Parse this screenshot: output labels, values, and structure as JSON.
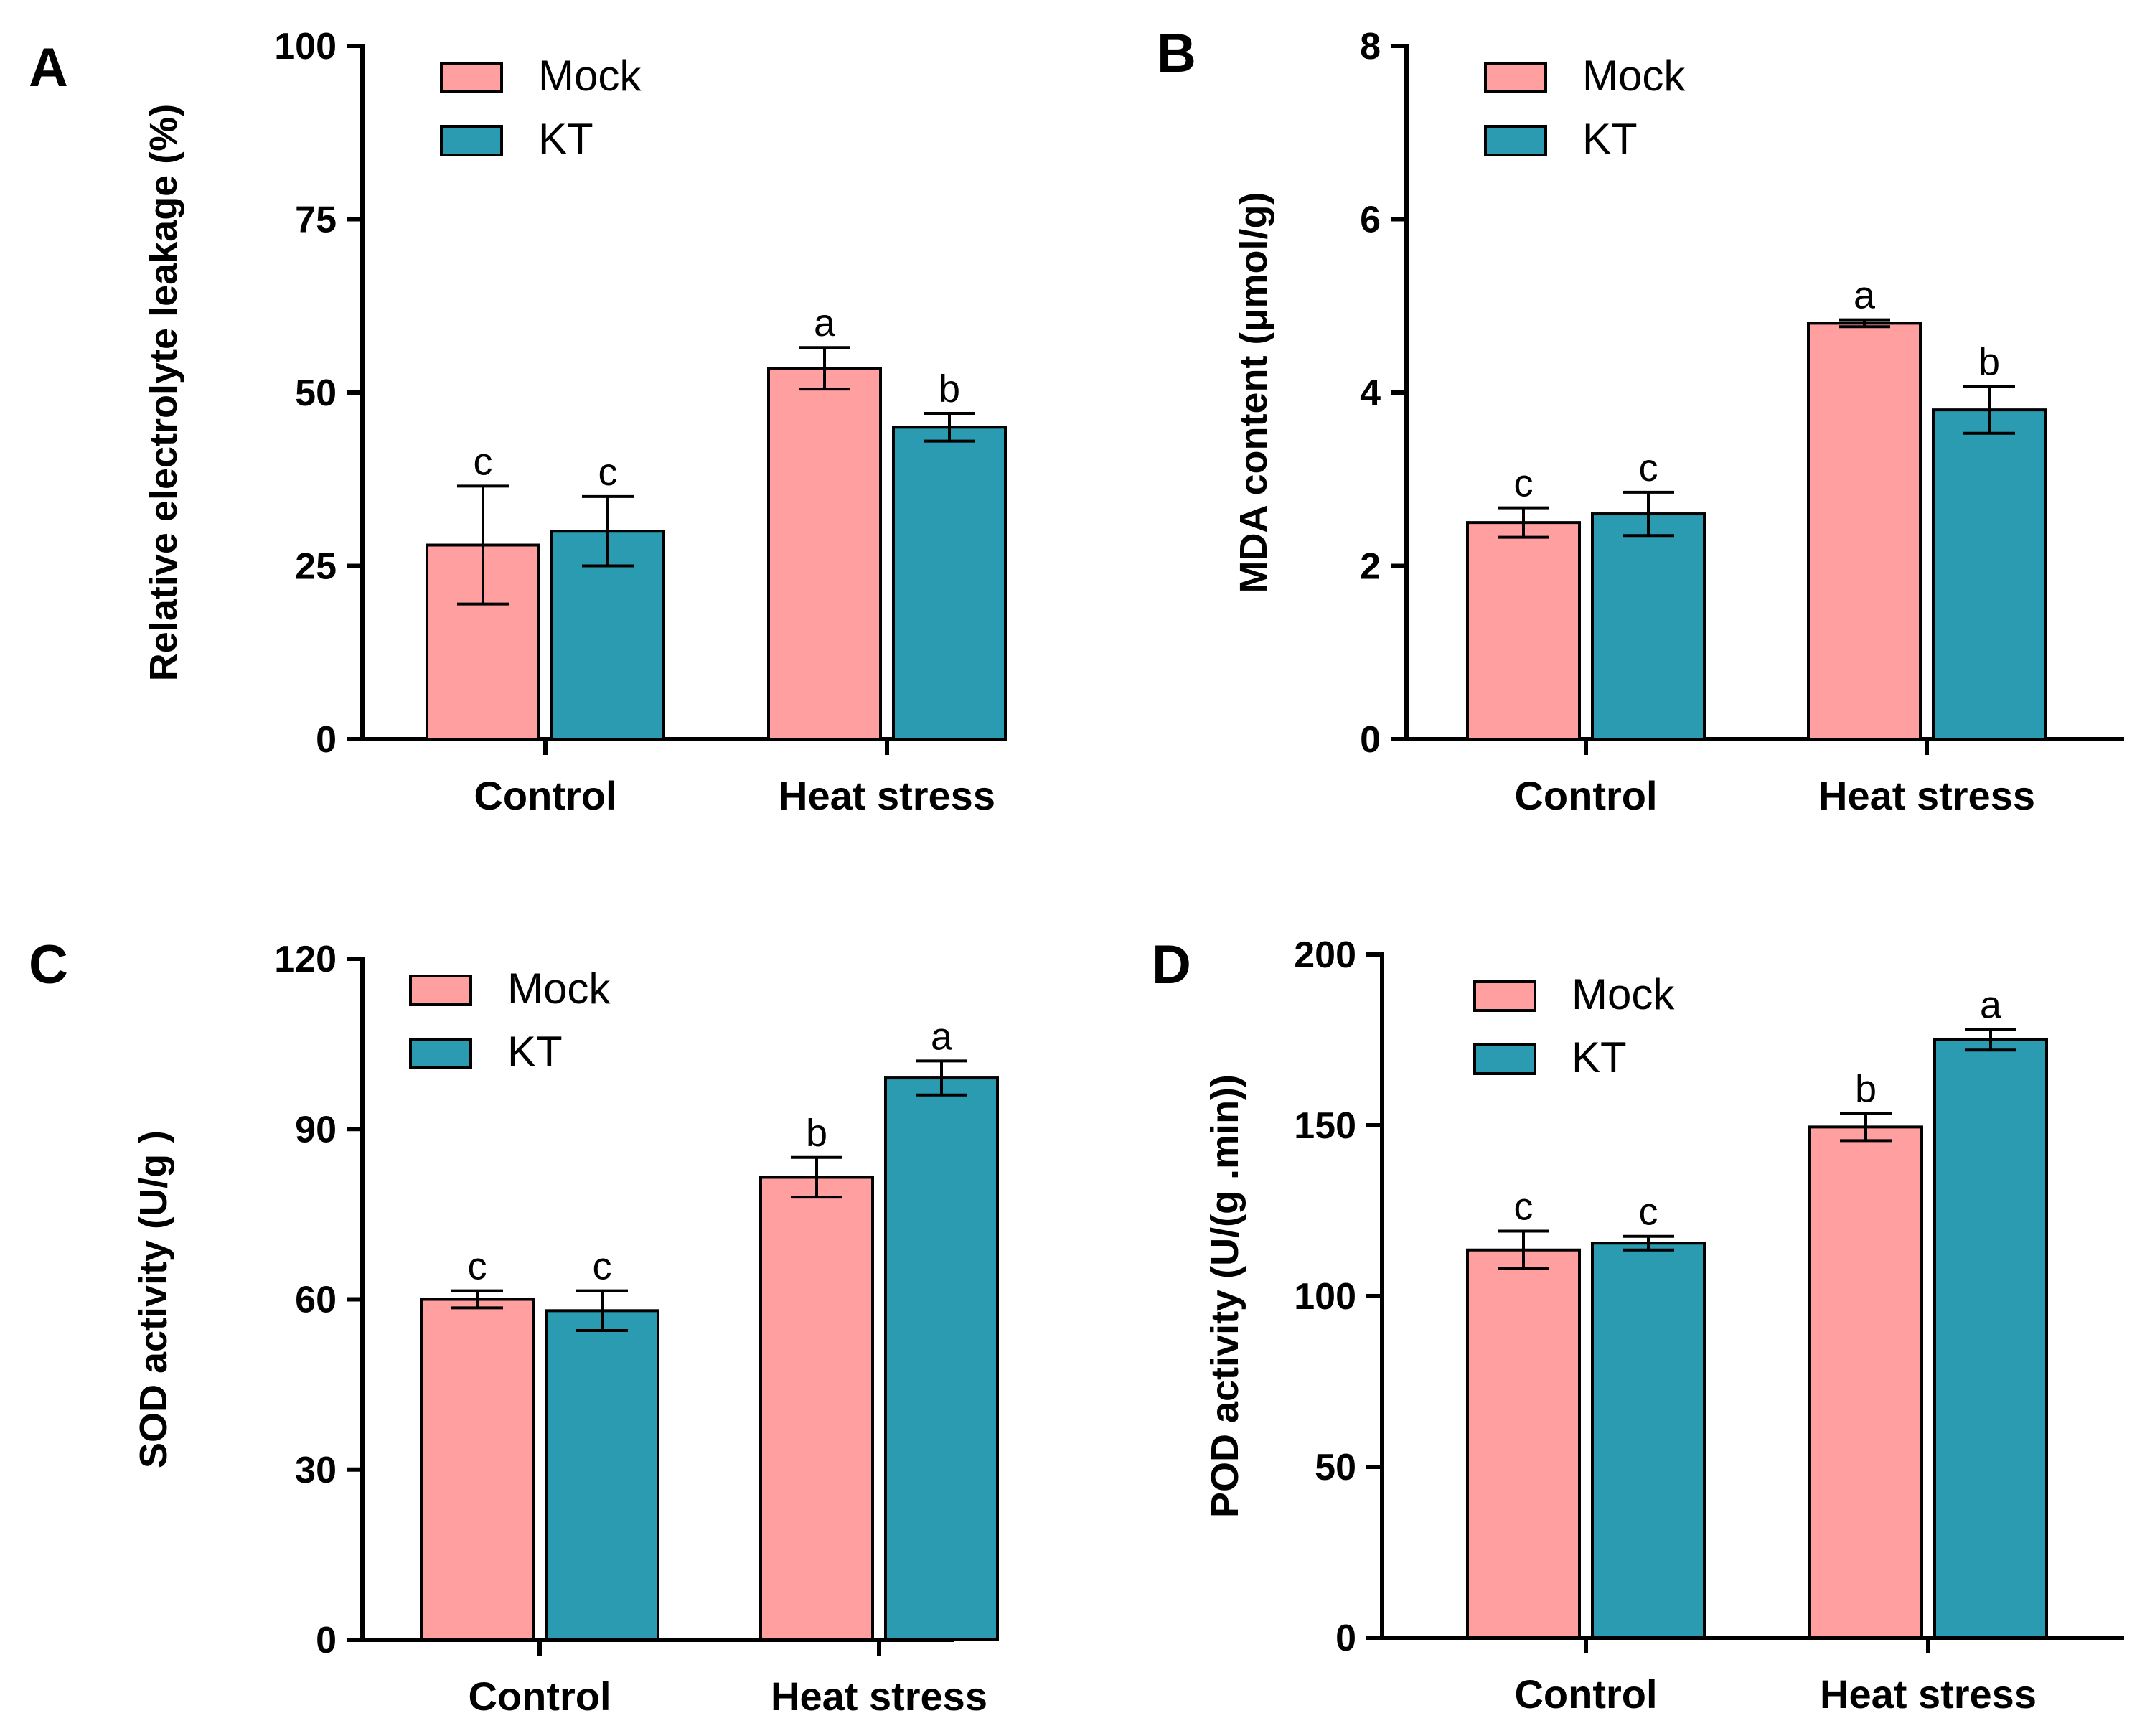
{
  "colors": {
    "mock": "#FF9F9F",
    "kt": "#2A9BB0",
    "axis": "#000000"
  },
  "chart_data": [
    {
      "panel": "A",
      "type": "bar",
      "categories": [
        "Control",
        "Heat stress"
      ],
      "ylabel": "Relative electrolyte leakage (%)",
      "ylim": [
        0,
        100
      ],
      "yticks": [
        "0",
        "25",
        "50",
        "75",
        "100"
      ],
      "legend": [
        "Mock",
        "KT"
      ],
      "series": [
        {
          "name": "Mock",
          "values": [
            28,
            53.5
          ],
          "errors": [
            8.5,
            3
          ],
          "letters": [
            "c",
            "a"
          ]
        },
        {
          "name": "KT",
          "values": [
            30,
            45
          ],
          "errors": [
            5,
            2
          ],
          "letters": [
            "c",
            "b"
          ]
        }
      ]
    },
    {
      "panel": "B",
      "type": "bar",
      "categories": [
        "Control",
        "Heat stress"
      ],
      "ylabel": "MDA content (μmol/g)",
      "ylim": [
        0,
        8
      ],
      "yticks": [
        "0",
        "2",
        "4",
        "6",
        "8"
      ],
      "legend": [
        "Mock",
        "KT"
      ],
      "series": [
        {
          "name": "Mock",
          "values": [
            2.5,
            4.8
          ],
          "errors": [
            0.17,
            0.04
          ],
          "letters": [
            "c",
            "a"
          ]
        },
        {
          "name": "KT",
          "values": [
            2.6,
            3.8
          ],
          "errors": [
            0.25,
            0.27
          ],
          "letters": [
            "c",
            "b"
          ]
        }
      ]
    },
    {
      "panel": "C",
      "type": "bar",
      "categories": [
        "Control",
        "Heat stress"
      ],
      "ylabel": "SOD activity (U/g )",
      "ylim": [
        0,
        120
      ],
      "yticks": [
        "0",
        "30",
        "60",
        "90",
        "120"
      ],
      "legend": [
        "Mock",
        "KT"
      ],
      "series": [
        {
          "name": "Mock",
          "values": [
            60,
            81.5
          ],
          "errors": [
            1.5,
            3.5
          ],
          "letters": [
            "c",
            "b"
          ]
        },
        {
          "name": "KT",
          "values": [
            58,
            99
          ],
          "errors": [
            3.5,
            3
          ],
          "letters": [
            "c",
            "a"
          ]
        }
      ]
    },
    {
      "panel": "D",
      "type": "bar",
      "categories": [
        "Control",
        "Heat stress"
      ],
      "ylabel": "POD activity (U/(g .min))",
      "ylim": [
        0,
        200
      ],
      "yticks": [
        "0",
        "50",
        "100",
        "150",
        "200"
      ],
      "legend": [
        "Mock",
        "KT"
      ],
      "series": [
        {
          "name": "Mock",
          "values": [
            113.5,
            149.5
          ],
          "errors": [
            5.5,
            4
          ],
          "letters": [
            "c",
            "b"
          ]
        },
        {
          "name": "KT",
          "values": [
            115.5,
            175
          ],
          "errors": [
            2,
            3
          ],
          "letters": [
            "c",
            "a"
          ]
        }
      ]
    }
  ]
}
